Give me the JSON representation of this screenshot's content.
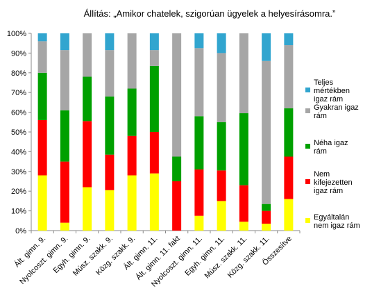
{
  "chart_data": {
    "type": "bar",
    "stacked": true,
    "percent": true,
    "title": "Állítás: „Amikor chatelek, szigorúan ügyelek a helyesírásomra.”",
    "xlabel": "",
    "ylabel": "",
    "ylim": [
      0,
      100
    ],
    "yticks": [
      "0%",
      "10%",
      "20%",
      "30%",
      "40%",
      "50%",
      "60%",
      "70%",
      "80%",
      "90%",
      "100%"
    ],
    "grid": false,
    "legend_position": "right",
    "categories": [
      "Ált. gimn. 9.",
      "Nyolcoszt. gimn. 9.",
      "Egyh. gimn. 9.",
      "Músz. szakk. 9.",
      "Közg. szakk. 9.",
      "Ált. gimn. 11.",
      "Ált. gimn. 11. fakt",
      "Nyolcoszt. gimn. 11.",
      "Egyh. gimn. 11.",
      "Músz. szakk. 11.",
      "Közg. szakk. 11.",
      "Összesítve"
    ],
    "series": [
      {
        "name": "Egyáltalán nem igaz rám",
        "color": "#ffff00",
        "values": [
          28,
          4,
          22,
          20.5,
          28,
          29,
          0,
          7.5,
          15,
          4.5,
          3.5,
          16
        ]
      },
      {
        "name": "Nem kifejezetten igaz rám",
        "color": "#ff0000",
        "values": [
          28,
          31,
          33.5,
          18,
          20,
          21,
          25,
          23.5,
          15.5,
          18.5,
          6.5,
          21.5
        ]
      },
      {
        "name": "Néha igaz rám",
        "color": "#00a000",
        "values": [
          24,
          26,
          22.5,
          29.5,
          24,
          33.5,
          12.5,
          27,
          24.5,
          36.5,
          3.5,
          24.5
        ]
      },
      {
        "name": "Gyakran igaz rám",
        "color": "#a6a6a6",
        "values": [
          16,
          30.5,
          22,
          23.5,
          28,
          8,
          62.5,
          34.5,
          35,
          40.5,
          72.5,
          32
        ]
      },
      {
        "name": "Teljes mértékben igaz rám",
        "color": "#31a5cf",
        "values": [
          4,
          8.5,
          0,
          8.5,
          0,
          8.5,
          0,
          7.5,
          10,
          0,
          14,
          6
        ]
      }
    ]
  }
}
